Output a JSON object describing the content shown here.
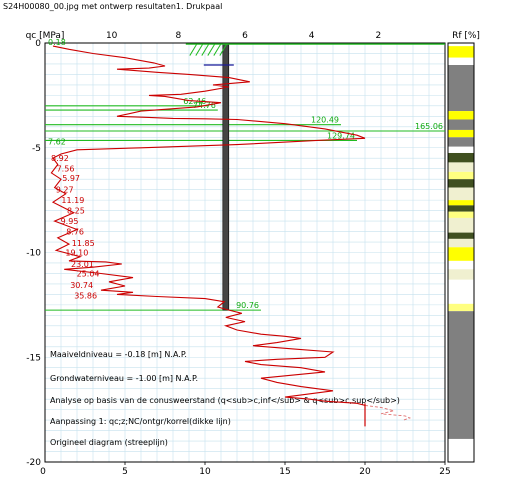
{
  "page": {
    "title": "S24H00080_00.jpg met ontwerp resultaten1. Drukpaal"
  },
  "chart_data": {
    "type": "line",
    "ylabel": "qc [MPa]",
    "rf_label": "Rf [%]",
    "qc_ticks": [
      5,
      10,
      15,
      20,
      25
    ],
    "qc_zero_label": "0",
    "qc_range": [
      0,
      25
    ],
    "rf_ticks": [
      10,
      8,
      6,
      4,
      2
    ],
    "rf_range": [
      12,
      0
    ],
    "depth_ticks": [
      0,
      -5,
      -10,
      -15,
      -20
    ],
    "depth_range": [
      0,
      -20
    ],
    "grid": true,
    "annotations": [
      "Maaiveldniveau = -0.18 [m] N.A.P.",
      "Grondwaterniveau = -1.00 [m] N.A.P.",
      "Analyse op basis van de conusweerstand (q<sub>c,inf</sub> & q<sub>c,sup</sub>)",
      "Aanpassing 1: qc;z;NC/ontgr/korrel(dikke lijn)",
      "Origineel diagram (streeplijn)"
    ],
    "series": [
      {
        "color": "#cc0000",
        "points": [
          [
            0.5,
            0.15
          ],
          [
            1.5,
            0.3
          ],
          [
            3.0,
            0.5
          ],
          [
            5.0,
            0.7
          ],
          [
            6.8,
            0.95
          ],
          [
            7.5,
            1.1
          ],
          [
            6.5,
            1.2
          ],
          [
            4.5,
            1.25
          ],
          [
            7.0,
            1.4
          ],
          [
            9.0,
            1.5
          ],
          [
            11.5,
            1.65
          ],
          [
            12.8,
            1.85
          ],
          [
            10.5,
            2.0
          ],
          [
            11.5,
            2.1
          ],
          [
            10.0,
            2.3
          ],
          [
            8.5,
            2.45
          ],
          [
            6.5,
            2.5
          ],
          [
            7.5,
            2.55
          ],
          [
            9.0,
            2.75
          ],
          [
            11.0,
            2.85
          ],
          [
            9.5,
            3.05
          ],
          [
            6.0,
            3.25
          ],
          [
            4.5,
            3.5
          ],
          [
            6.5,
            3.55
          ],
          [
            8.0,
            3.6
          ],
          [
            10.0,
            3.62
          ],
          [
            12.0,
            3.65
          ],
          [
            15.0,
            3.85
          ],
          [
            17.5,
            4.1
          ],
          [
            19.5,
            4.4
          ],
          [
            20.0,
            4.55
          ],
          [
            17.0,
            4.65
          ],
          [
            12.0,
            4.85
          ],
          [
            6.0,
            5.0
          ],
          [
            2.0,
            5.1
          ],
          [
            1.0,
            5.3
          ],
          [
            0.5,
            5.5
          ],
          [
            0.8,
            5.8
          ],
          [
            0.4,
            6.2
          ],
          [
            1.0,
            6.5
          ],
          [
            0.6,
            6.9
          ],
          [
            1.3,
            7.2
          ],
          [
            0.5,
            7.6
          ],
          [
            1.8,
            8.1
          ],
          [
            0.6,
            8.5
          ],
          [
            2.0,
            8.9
          ],
          [
            0.8,
            9.3
          ],
          [
            1.5,
            9.6
          ],
          [
            0.7,
            9.9
          ],
          [
            2.2,
            10.2
          ],
          [
            1.5,
            10.4
          ],
          [
            3.8,
            10.45
          ],
          [
            4.8,
            10.55
          ],
          [
            3.0,
            10.7
          ],
          [
            1.2,
            10.8
          ],
          [
            3.5,
            11.0
          ],
          [
            5.5,
            11.2
          ],
          [
            4.0,
            11.4
          ],
          [
            5.0,
            11.6
          ],
          [
            3.5,
            11.8
          ],
          [
            5.5,
            11.9
          ],
          [
            4.5,
            12.0
          ],
          [
            7.0,
            12.1
          ],
          [
            10.0,
            12.2
          ],
          [
            11.2,
            12.35
          ],
          [
            10.8,
            12.6
          ],
          [
            11.5,
            12.75
          ],
          [
            12.3,
            12.9
          ],
          [
            11.3,
            13.1
          ],
          [
            12.5,
            13.3
          ],
          [
            11.3,
            13.5
          ],
          [
            12.0,
            13.7
          ],
          [
            13.5,
            13.9
          ],
          [
            15.0,
            14.0
          ],
          [
            16.0,
            14.1
          ],
          [
            14.5,
            14.3
          ],
          [
            13.0,
            14.45
          ],
          [
            15.5,
            14.6
          ],
          [
            18.0,
            14.75
          ],
          [
            17.5,
            15.0
          ],
          [
            14.5,
            15.1
          ],
          [
            12.5,
            15.2
          ],
          [
            13.5,
            15.35
          ],
          [
            16.0,
            15.5
          ],
          [
            17.5,
            15.7
          ],
          [
            15.5,
            15.85
          ],
          [
            13.5,
            16.0
          ],
          [
            14.5,
            16.2
          ],
          [
            16.0,
            16.4
          ],
          [
            18.0,
            16.6
          ],
          [
            16.5,
            16.75
          ],
          [
            15.0,
            16.9
          ],
          [
            16.5,
            17.0
          ],
          [
            17.5,
            17.1
          ],
          [
            19.5,
            17.2
          ],
          [
            20.0,
            17.3
          ]
        ]
      }
    ],
    "dash_series": {
      "color": "#e07070",
      "points": [
        [
          20.0,
          17.3
        ],
        [
          21.0,
          17.4
        ],
        [
          21.8,
          17.55
        ],
        [
          21.0,
          17.7
        ],
        [
          22.5,
          17.8
        ],
        [
          22.8,
          17.9
        ],
        [
          22.4,
          18.0
        ]
      ]
    },
    "design_levels": [
      {
        "depth": 0.18,
        "value_label": "0.18",
        "qc": 0.0
      },
      {
        "depth": 3.0,
        "value_label": "62.46",
        "qc": 10.2
      },
      {
        "depth": 3.2,
        "value_label": "74.76",
        "qc": 10.8
      },
      {
        "depth": 3.9,
        "value_label": "120.49",
        "qc": 18.5
      },
      {
        "depth": 4.2,
        "value_label": "165.06",
        "qc": 25.0
      },
      {
        "depth": 4.65,
        "value_label": "129.74",
        "qc": 19.5
      },
      {
        "depth": 4.95,
        "value_label": "7.62",
        "qc": 0.0
      },
      {
        "depth": 12.75,
        "value_label": "90.76",
        "qc": 13.5
      }
    ],
    "point_labels": [
      {
        "depth": 5.5,
        "value_label": "8.92"
      },
      {
        "depth": 6.0,
        "value_label": "7.56"
      },
      {
        "depth": 6.45,
        "value_label": "5.97"
      },
      {
        "depth": 7.0,
        "value_label": "9.27"
      },
      {
        "depth": 7.5,
        "value_label": "11.19"
      },
      {
        "depth": 8.0,
        "value_label": "8.25"
      },
      {
        "depth": 8.5,
        "value_label": "9.95"
      },
      {
        "depth": 9.0,
        "value_label": "8.76"
      },
      {
        "depth": 9.55,
        "value_label": "11.85"
      },
      {
        "depth": 10.0,
        "value_label": "19.10"
      },
      {
        "depth": 10.55,
        "value_label": "23.01"
      },
      {
        "depth": 11.0,
        "value_label": "25.04"
      },
      {
        "depth": 11.55,
        "value_label": "30.74"
      },
      {
        "depth": 12.05,
        "value_label": "35.86"
      }
    ],
    "pile": {
      "qc": 11.3,
      "depth_top": 0.0,
      "depth_bottom": 12.75
    },
    "rf_layers": [
      {
        "from": 0.0,
        "to": 0.15,
        "color": "#ffffff"
      },
      {
        "from": 0.15,
        "to": 0.7,
        "color": "#ffff00"
      },
      {
        "from": 0.7,
        "to": 1.05,
        "color": "#ffffff"
      },
      {
        "from": 1.05,
        "to": 3.25,
        "color": "#808080"
      },
      {
        "from": 3.25,
        "to": 3.65,
        "color": "#ffff00"
      },
      {
        "from": 3.65,
        "to": 4.15,
        "color": "#808080"
      },
      {
        "from": 4.15,
        "to": 4.5,
        "color": "#ffff00"
      },
      {
        "from": 4.5,
        "to": 4.95,
        "color": "#808080"
      },
      {
        "from": 4.95,
        "to": 5.25,
        "color": "#ffffff"
      },
      {
        "from": 5.25,
        "to": 5.7,
        "color": "#405020"
      },
      {
        "from": 5.7,
        "to": 6.15,
        "color": "#f0f0d0"
      },
      {
        "from": 6.15,
        "to": 6.5,
        "color": "#ffff80"
      },
      {
        "from": 6.5,
        "to": 6.9,
        "color": "#405020"
      },
      {
        "from": 6.9,
        "to": 7.5,
        "color": "#f0f0d0"
      },
      {
        "from": 7.5,
        "to": 7.75,
        "color": "#ffff00"
      },
      {
        "from": 7.75,
        "to": 8.05,
        "color": "#405020"
      },
      {
        "from": 8.05,
        "to": 8.35,
        "color": "#ffff80"
      },
      {
        "from": 8.35,
        "to": 9.05,
        "color": "#f0f0d0"
      },
      {
        "from": 9.05,
        "to": 9.35,
        "color": "#405020"
      },
      {
        "from": 9.35,
        "to": 9.75,
        "color": "#f0f0d0"
      },
      {
        "from": 9.75,
        "to": 10.4,
        "color": "#ffff00"
      },
      {
        "from": 10.4,
        "to": 10.8,
        "color": "#ffffff"
      },
      {
        "from": 10.8,
        "to": 11.3,
        "color": "#f0f0d0"
      },
      {
        "from": 11.3,
        "to": 12.45,
        "color": "#ffffff"
      },
      {
        "from": 12.45,
        "to": 12.8,
        "color": "#ffff80"
      },
      {
        "from": 12.8,
        "to": 18.9,
        "color": "#808080"
      },
      {
        "from": 18.9,
        "to": 20.0,
        "color": "#ffffff"
      }
    ]
  }
}
